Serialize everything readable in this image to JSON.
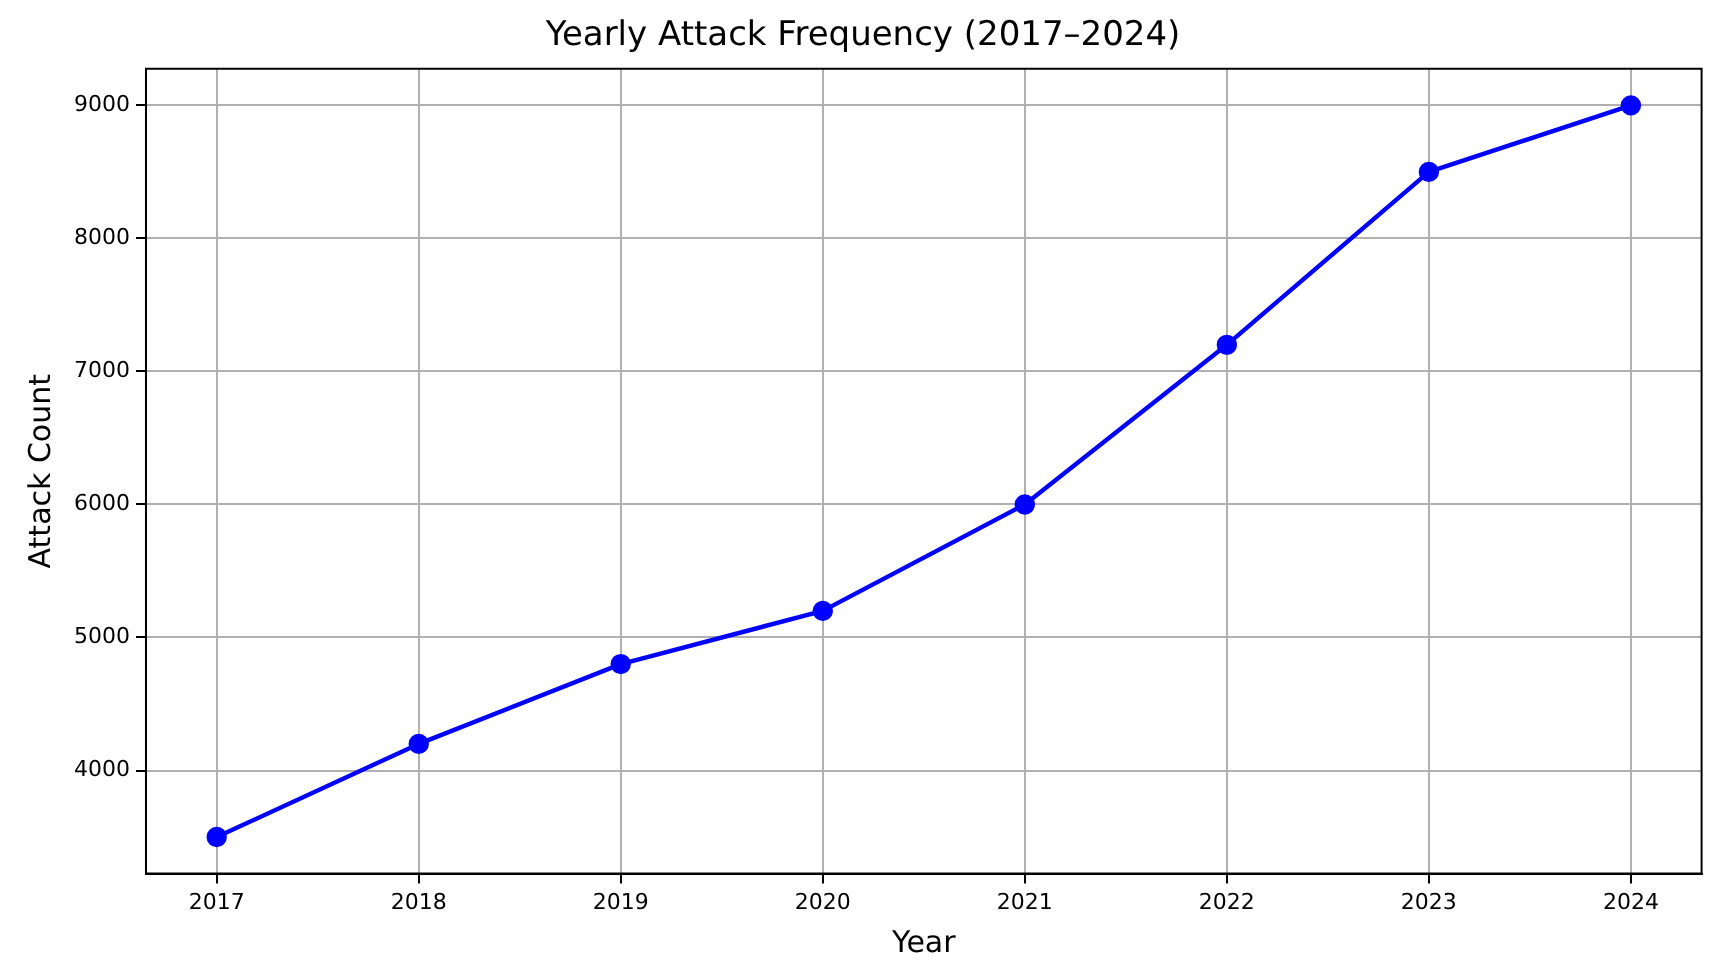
{
  "chart_data": {
    "type": "line",
    "title": "Yearly Attack Frequency (2017–2024)",
    "xlabel": "Year",
    "ylabel": "Attack Count",
    "x": [
      2017,
      2018,
      2019,
      2020,
      2021,
      2022,
      2023,
      2024
    ],
    "series": [
      {
        "color": "#0000ff",
        "values": [
          3500,
          4200,
          4800,
          5200,
          6000,
          7200,
          8500,
          9000
        ]
      }
    ],
    "xlim": [
      2016.65,
      2024.35
    ],
    "xticks": [
      2017,
      2018,
      2019,
      2020,
      2021,
      2022,
      2023,
      2024
    ],
    "ylim": [
      3225,
      9275
    ],
    "yticks": [
      4000,
      5000,
      6000,
      7000,
      8000,
      9000
    ],
    "grid": true,
    "legend": false,
    "marker": "circle",
    "line_style": "solid"
  }
}
